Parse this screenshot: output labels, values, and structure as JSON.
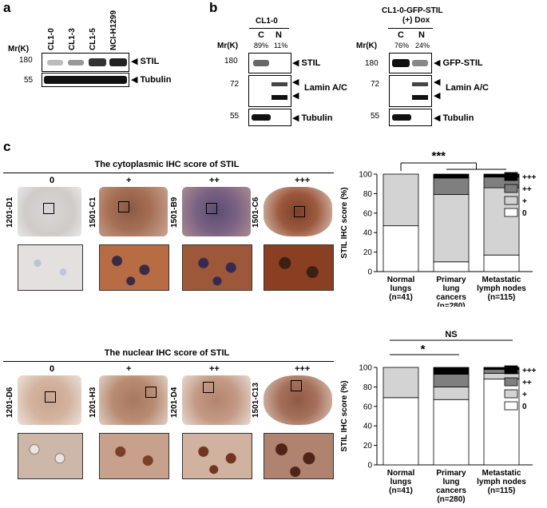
{
  "panels": {
    "a": "a",
    "b": "b",
    "c": "c"
  },
  "panel_a": {
    "mr_label": "Mr(K)",
    "lanes": [
      "CL1-0",
      "CL1-3",
      "CL1-5",
      "NCI-H1299"
    ],
    "markers": [
      "180",
      "55"
    ],
    "bands": [
      "STIL",
      "Tubulin"
    ]
  },
  "panel_b": {
    "left": {
      "title": "CL1-0",
      "mr_label": "Mr(K)",
      "lanes": [
        "C",
        "N"
      ],
      "percents": [
        "89%",
        "11%"
      ],
      "markers": [
        "180",
        "72",
        "55"
      ],
      "bands": [
        "STIL",
        "Lamin A/C",
        "Tubulin"
      ]
    },
    "right": {
      "title_line1": "CL1-0-GFP-STIL",
      "title_line2": "(+) Dox",
      "mr_label": "Mr(K)",
      "lanes": [
        "C",
        "N"
      ],
      "percents": [
        "76%",
        "24%"
      ],
      "markers": [
        "180",
        "72",
        "55"
      ],
      "bands": [
        "GFP-STIL",
        "Lamin A/C",
        "Tubulin"
      ]
    }
  },
  "panel_c": {
    "cyto_title": "The cytoplasmic IHC score of STIL",
    "nuc_title": "The nuclear IHC score of STIL",
    "scores": [
      "0",
      "+",
      "++",
      "+++"
    ],
    "cyto_samples": [
      "1201-D1",
      "1501-C1",
      "1501-B9",
      "1501-C6"
    ],
    "nuc_samples": [
      "1201-D6",
      "1201-H3",
      "1201-D4",
      "1501-C13"
    ]
  },
  "chart_data": [
    {
      "type": "bar",
      "stacked": true,
      "ylabel": "STIL IHC score (%)",
      "ylim": [
        0,
        100
      ],
      "yticks": [
        "0",
        "20",
        "40",
        "60",
        "80",
        "100"
      ],
      "categories": [
        [
          "Normal",
          "lungs",
          "(n=41)"
        ],
        [
          "Primary",
          "lung",
          "cancers",
          "(n=280)"
        ],
        [
          "Metastatic",
          "lymph nodes",
          "(n=115)"
        ]
      ],
      "series": [
        {
          "name": "0",
          "color": "#ffffff",
          "values": [
            47,
            10,
            17
          ]
        },
        {
          "name": "+",
          "color": "#d3d3d3",
          "values": [
            53,
            69,
            69
          ]
        },
        {
          "name": "++",
          "color": "#7f7f7f",
          "values": [
            0,
            17,
            11
          ]
        },
        {
          "name": "+++",
          "color": "#000000",
          "values": [
            0,
            4,
            3
          ]
        }
      ],
      "significance": "***"
    },
    {
      "type": "bar",
      "stacked": true,
      "ylabel": "STIL IHC score (%)",
      "ylim": [
        0,
        100
      ],
      "yticks": [
        "0",
        "20",
        "40",
        "60",
        "80",
        "100"
      ],
      "categories": [
        [
          "Normal",
          "lungs",
          "(n=41)"
        ],
        [
          "Primary",
          "lung",
          "cancers",
          "(n=280)"
        ],
        [
          "Metastatic",
          "lymph nodes",
          "(n=115)"
        ]
      ],
      "series": [
        {
          "name": "0",
          "color": "#ffffff",
          "values": [
            69,
            67,
            88
          ]
        },
        {
          "name": "+",
          "color": "#d3d3d3",
          "values": [
            31,
            13,
            6
          ]
        },
        {
          "name": "++",
          "color": "#7f7f7f",
          "values": [
            0,
            13,
            4
          ]
        },
        {
          "name": "+++",
          "color": "#000000",
          "values": [
            0,
            7,
            2
          ]
        }
      ],
      "significance_upper": "NS",
      "significance_lower": "*"
    }
  ]
}
